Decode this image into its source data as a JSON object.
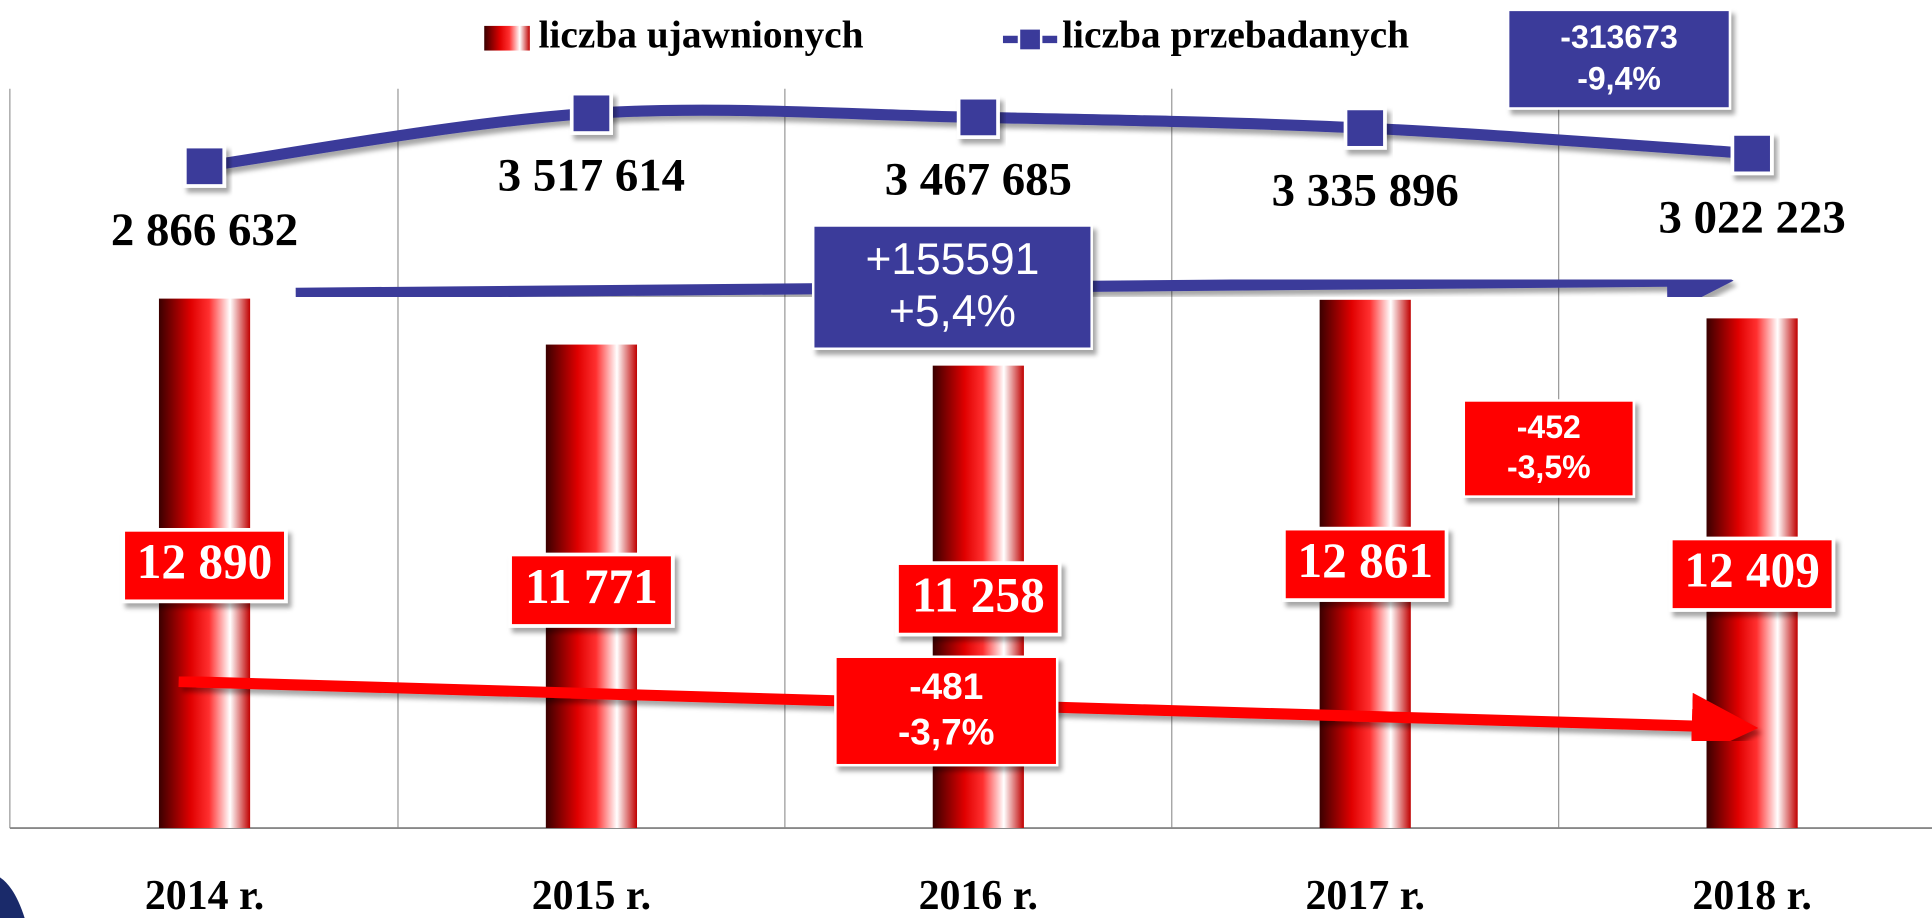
{
  "chart_data": {
    "type": "bar",
    "categories": [
      "2014 r.",
      "2015 r.",
      "2016 r.",
      "2017 r.",
      "2018 r."
    ],
    "series": [
      {
        "name": "liczba ujawnionych",
        "type": "bar",
        "color": "#e00000",
        "values": [
          12890,
          11771,
          11258,
          12861,
          12409
        ],
        "value_labels": [
          "12 890",
          "11 771",
          "11 258",
          "12 861",
          "12 409"
        ]
      },
      {
        "name": "liczba przebadanych",
        "type": "line",
        "color": "#3a3a9a",
        "axis": "y2",
        "values": [
          2866632,
          3517614,
          3467685,
          3335896,
          3022223
        ],
        "value_labels": [
          "2 866 632",
          "3 517 614",
          "3 467 685",
          "3 335 896",
          "3 022 223"
        ]
      }
    ],
    "ylim": [
      0,
      18000
    ],
    "y2lim": [
      -5270000,
      3820000
    ],
    "grid": true,
    "annotations": [
      {
        "lines": [
          "+155591",
          "+5,4%"
        ],
        "color": "#3a3a9a"
      },
      {
        "lines": [
          "-481",
          "-3,7%"
        ],
        "color": "#ff0000"
      },
      {
        "lines": [
          "-452",
          "-3,5%"
        ],
        "color": "#ff0000"
      },
      {
        "lines": [
          "-313673",
          "-9,4%"
        ],
        "color": "#3a3a9a"
      }
    ]
  }
}
